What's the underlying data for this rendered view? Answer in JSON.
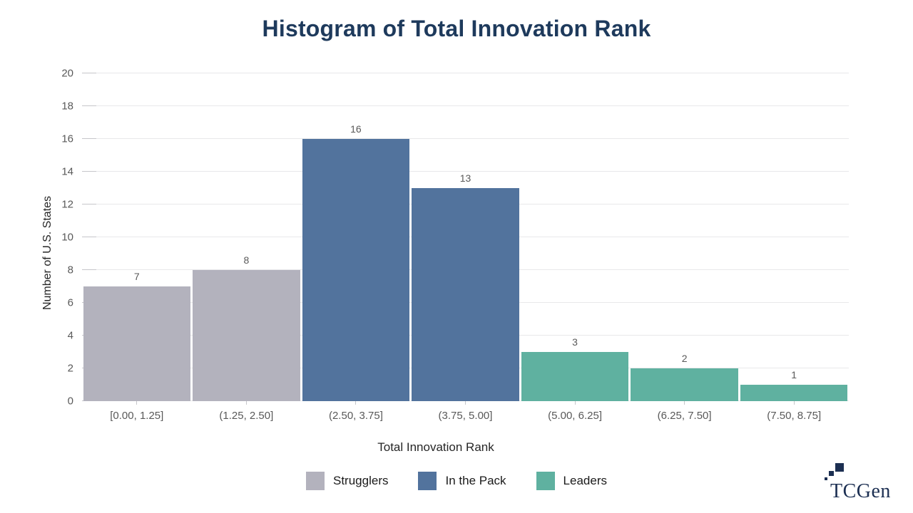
{
  "title": "Histogram of Total Innovation Rank",
  "chart_data": {
    "type": "bar",
    "title": "Histogram of Total Innovation Rank",
    "xlabel": "Total Innovation Rank",
    "ylabel": "Number of U.S. States",
    "categories": [
      "[0.00, 1.25]",
      "(1.25, 2.50]",
      "(2.50, 3.75]",
      "(3.75, 5.00]",
      "(5.00, 6.25]",
      "(6.25, 7.50]",
      "(7.50, 8.75]"
    ],
    "values": [
      7,
      8,
      16,
      13,
      3,
      2,
      1
    ],
    "groups": [
      "Strugglers",
      "Strugglers",
      "In the Pack",
      "In the Pack",
      "Leaders",
      "Leaders",
      "Leaders"
    ],
    "data_labels": [
      7,
      8,
      16,
      13,
      3,
      2,
      1
    ],
    "ylim": [
      0,
      20
    ],
    "ytick_step": 2,
    "yticks": [
      0,
      2,
      4,
      6,
      8,
      10,
      12,
      14,
      16,
      18,
      20
    ],
    "grid": true,
    "legend_position": "bottom",
    "group_colors": {
      "Strugglers": "#B3B2BD",
      "In the Pack": "#52739D",
      "Leaders": "#5FB1A0"
    }
  },
  "legend": {
    "items": [
      {
        "label": "Strugglers",
        "color": "#B3B2BD"
      },
      {
        "label": "In the Pack",
        "color": "#52739D"
      },
      {
        "label": "Leaders",
        "color": "#5FB1A0"
      }
    ]
  },
  "logo": {
    "text": "TCGen",
    "color": "#1C2F52"
  },
  "colors": {
    "title": "#1E3A5C",
    "gridline": "#E8E8EA",
    "tick": "#C6C6CA",
    "tick_label": "#595959",
    "axis_title": "#262626",
    "background": "#FFFFFF"
  }
}
